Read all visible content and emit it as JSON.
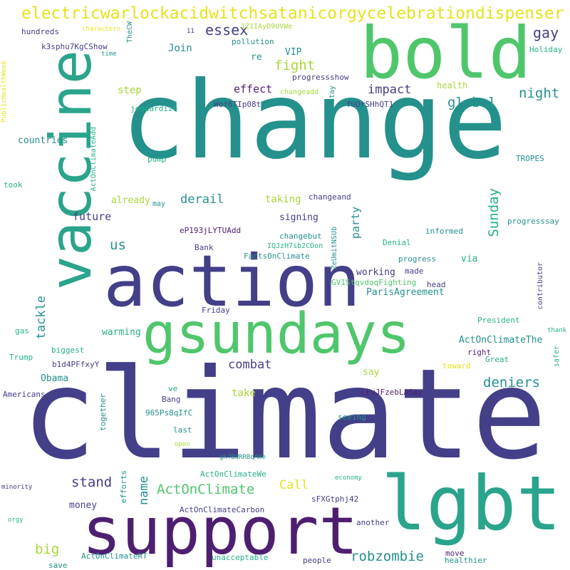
{
  "words": [
    {
      "text": "climate",
      "color": "indigo"
    },
    {
      "text": "change",
      "color": "teal"
    },
    {
      "text": "vaccine",
      "color": "teal2"
    },
    {
      "text": "bold",
      "color": "green"
    },
    {
      "text": "action",
      "color": "indigo"
    },
    {
      "text": "gsundays",
      "color": "green"
    },
    {
      "text": "support",
      "color": "purple"
    },
    {
      "text": "lgbt",
      "color": "teal2"
    },
    {
      "text": "electricwarlockacidwitchsatanicorgycelebrationdispenser",
      "color": "yellow"
    },
    {
      "text": "essex",
      "color": "indigo"
    },
    {
      "text": "gay",
      "color": "indigo"
    },
    {
      "text": "fight",
      "color": "lime"
    },
    {
      "text": "night",
      "color": "teal"
    },
    {
      "text": "global",
      "color": "teal"
    },
    {
      "text": "impact",
      "color": "indigo"
    },
    {
      "text": "effect",
      "color": "purple"
    },
    {
      "text": "step",
      "color": "lime"
    },
    {
      "text": "Join",
      "color": "teal"
    },
    {
      "text": "VIP",
      "color": "teal"
    },
    {
      "text": "re",
      "color": "teal"
    },
    {
      "text": "hundreds",
      "color": "indigo"
    },
    {
      "text": "k3sphu7KgCShow",
      "color": "indigo"
    },
    {
      "text": "characters",
      "color": "yellow"
    },
    {
      "text": "time",
      "color": "teal"
    },
    {
      "text": "TheCW",
      "color": "teal"
    },
    {
      "text": "11",
      "color": "indigo"
    },
    {
      "text": "1Z1IAyD9UVWe",
      "color": "lime"
    },
    {
      "text": "pollution",
      "color": "teal"
    },
    {
      "text": "progressshow",
      "color": "indigo"
    },
    {
      "text": "Stay",
      "color": "teal"
    },
    {
      "text": "health",
      "color": "lime"
    },
    {
      "text": "Holiday",
      "color": "aqua"
    },
    {
      "text": "changeadd",
      "color": "lime"
    },
    {
      "text": "Wof6TIp08t",
      "color": "indigo"
    },
    {
      "text": "fUOrSHhQT1",
      "color": "indigo"
    },
    {
      "text": "jeopardize",
      "color": "aqua"
    },
    {
      "text": "countries",
      "color": "teal"
    },
    {
      "text": "pump",
      "color": "aqua"
    },
    {
      "text": "ActOnClimateAdd",
      "color": "aqua"
    },
    {
      "text": "TROPES",
      "color": "teal"
    },
    {
      "text": "took",
      "color": "aqua"
    },
    {
      "text": "PublicHealthWeek",
      "color": "yellow"
    },
    {
      "text": "derail",
      "color": "teal"
    },
    {
      "text": "already",
      "color": "lime"
    },
    {
      "text": "may",
      "color": "teal"
    },
    {
      "text": "taking",
      "color": "lime"
    },
    {
      "text": "changeand",
      "color": "indigo"
    },
    {
      "text": "Sunday",
      "color": "aqua"
    },
    {
      "text": "future",
      "color": "indigo"
    },
    {
      "text": "party",
      "color": "teal"
    },
    {
      "text": "signing",
      "color": "indigo"
    },
    {
      "text": "progresssay",
      "color": "teal"
    },
    {
      "text": "eP193jLYTUAdd",
      "color": "purple"
    },
    {
      "text": "informed",
      "color": "teal"
    },
    {
      "text": "us",
      "color": "teal"
    },
    {
      "text": "changebut",
      "color": "teal"
    },
    {
      "text": "IQJzH7sb2CDon",
      "color": "aqua"
    },
    {
      "text": "Denial",
      "color": "aqua"
    },
    {
      "text": "Bank",
      "color": "indigo"
    },
    {
      "text": "ZeUmitNSUb",
      "color": "teal"
    },
    {
      "text": "FactsOnClimate",
      "color": "teal"
    },
    {
      "text": "progress",
      "color": "teal"
    },
    {
      "text": "via",
      "color": "aqua"
    },
    {
      "text": "contributor",
      "color": "indigo"
    },
    {
      "text": "working",
      "color": "indigo"
    },
    {
      "text": "made",
      "color": "indigo"
    },
    {
      "text": "GV1StqvdoqFighting",
      "color": "green"
    },
    {
      "text": "head",
      "color": "indigo"
    },
    {
      "text": "ParisAgreement",
      "color": "teal"
    },
    {
      "text": "tackle",
      "color": "teal"
    },
    {
      "text": "Friday",
      "color": "indigo"
    },
    {
      "text": "President",
      "color": "aqua"
    },
    {
      "text": "gas",
      "color": "aqua"
    },
    {
      "text": "warming",
      "color": "aqua"
    },
    {
      "text": "ActOnClimateThe",
      "color": "teal"
    },
    {
      "text": "thank",
      "color": "aqua"
    },
    {
      "text": "Trump",
      "color": "aqua"
    },
    {
      "text": "biggest",
      "color": "aqua"
    },
    {
      "text": "right",
      "color": "purple"
    },
    {
      "text": "safer",
      "color": "aqua"
    },
    {
      "text": "combat",
      "color": "indigo"
    },
    {
      "text": "Great",
      "color": "aqua"
    },
    {
      "text": "toward",
      "color": "yellow"
    },
    {
      "text": "b1d4PFfxyY",
      "color": "indigo"
    },
    {
      "text": "Obama",
      "color": "teal"
    },
    {
      "text": "say",
      "color": "lime"
    },
    {
      "text": "deniers",
      "color": "teal"
    },
    {
      "text": "Americans",
      "color": "indigo"
    },
    {
      "text": "ve",
      "color": "aqua"
    },
    {
      "text": "LEvJFzebLASay",
      "color": "purple"
    },
    {
      "text": "take",
      "color": "lime"
    },
    {
      "text": "Bang",
      "color": "indigo"
    },
    {
      "text": "together",
      "color": "teal"
    },
    {
      "text": "965Ps8qIfC",
      "color": "teal"
    },
    {
      "text": "seeing",
      "color": "teal"
    },
    {
      "text": "last",
      "color": "teal"
    },
    {
      "text": "open",
      "color": "lime"
    },
    {
      "text": "gk7BWRRBqAWe",
      "color": "teal"
    },
    {
      "text": "efforts",
      "color": "teal"
    },
    {
      "text": "economy",
      "color": "aqua"
    },
    {
      "text": "stand",
      "color": "indigo"
    },
    {
      "text": "name",
      "color": "teal"
    },
    {
      "text": "ActOnClimate",
      "color": "green"
    },
    {
      "text": "Call",
      "color": "yellow"
    },
    {
      "text": "ActOnClimateWe",
      "color": "aqua"
    },
    {
      "text": "minority",
      "color": "indigo"
    },
    {
      "text": "money",
      "color": "indigo"
    },
    {
      "text": "ActOnClimateCarbon",
      "color": "indigo"
    },
    {
      "text": "sFXGtphj42",
      "color": "indigo"
    },
    {
      "text": "orgy",
      "color": "aqua"
    },
    {
      "text": "another",
      "color": "indigo"
    },
    {
      "text": "big",
      "color": "lime"
    },
    {
      "text": "robzombie",
      "color": "teal"
    },
    {
      "text": "ActOnClimateRT",
      "color": "teal"
    },
    {
      "text": "unacceptable",
      "color": "aqua"
    },
    {
      "text": "people",
      "color": "indigo"
    },
    {
      "text": "move",
      "color": "purple"
    },
    {
      "text": "healthier",
      "color": "teal"
    },
    {
      "text": "save",
      "color": "teal"
    }
  ],
  "palette": {
    "green": "#4fc66b",
    "lime": "#a8d63a",
    "yellow": "#e6e21b",
    "teal": "#24918c",
    "teal2": "#2aa48a",
    "blue": "#336699",
    "indigo": "#433f88",
    "purple": "#4e1f70",
    "aqua": "#26b08a"
  }
}
